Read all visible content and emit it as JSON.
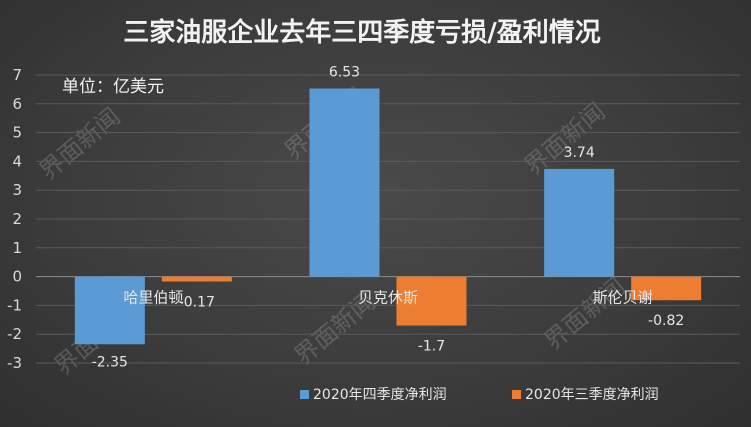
{
  "chart_data": {
    "type": "bar",
    "title": "三家油服企业去年三四季度亏损/盈利情况",
    "unit_label": "单位：亿美元",
    "categories": [
      "哈里伯顿",
      "贝克休斯",
      "斯伦贝谢"
    ],
    "series": [
      {
        "name": "2020年四季度净利润",
        "values": [
          -2.35,
          6.53,
          3.74
        ],
        "color": "#5b9bd5"
      },
      {
        "name": "2020年三季度净利润",
        "values": [
          -0.17,
          -1.7,
          -0.82
        ],
        "color": "#ed7d31"
      }
    ],
    "value_labels": [
      [
        "-2.35",
        "6.53",
        "3.74"
      ],
      [
        "-0.17",
        "-1.7",
        "-0.82"
      ]
    ],
    "ylim": [
      -3,
      7
    ],
    "yticks": [
      -3,
      -2,
      -1,
      0,
      1,
      2,
      3,
      4,
      5,
      6,
      7
    ],
    "grid": true,
    "legend_position": "bottom-right",
    "watermark": "界面新闻"
  }
}
